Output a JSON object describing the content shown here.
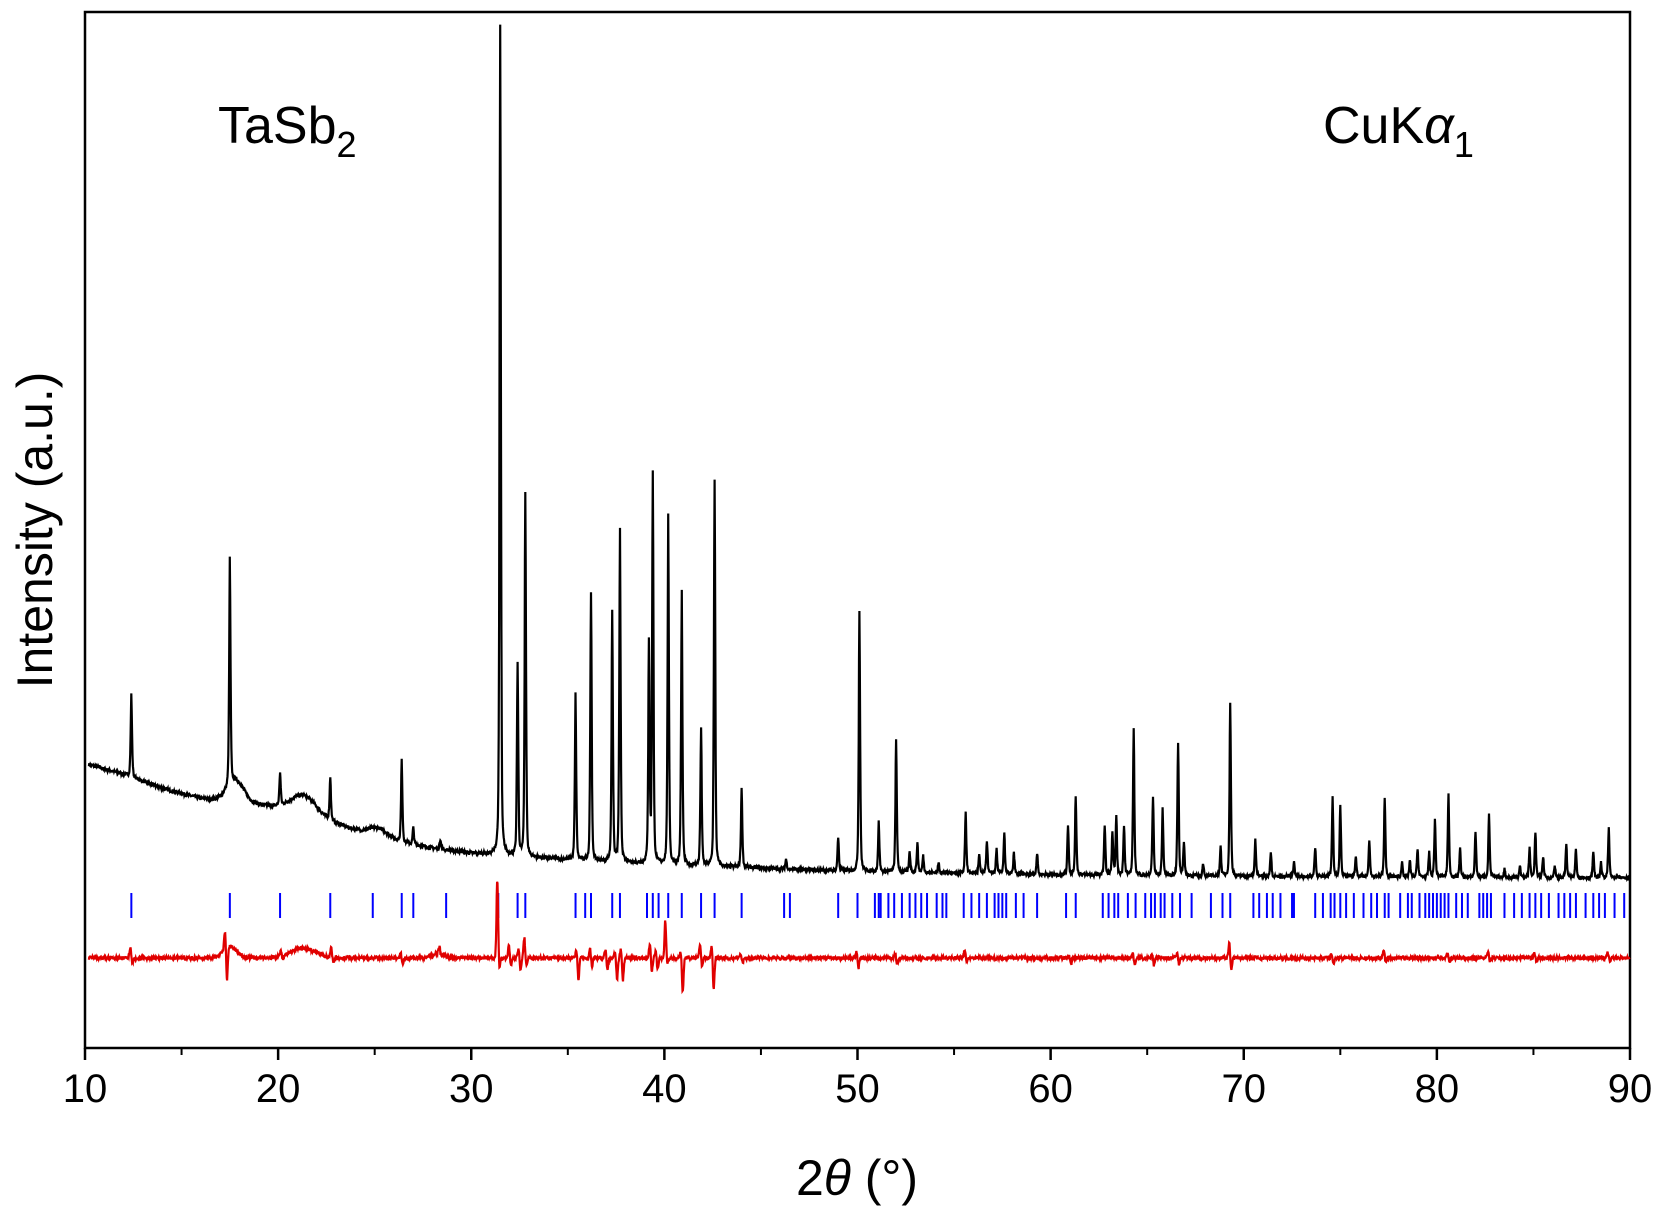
{
  "chart_data": {
    "type": "line",
    "xlabel_prefix": "2",
    "xlabel_symbol": "θ",
    "xlabel_suffix": " (°)",
    "ylabel": "Intensity (a.u.)",
    "xlim": [
      10,
      90
    ],
    "xticks": [
      10,
      20,
      30,
      40,
      50,
      60,
      70,
      80,
      90
    ],
    "y_ticks_labeled": false,
    "grid": false,
    "annotations": {
      "compound_main": "TaSb",
      "compound_sub": "2",
      "radiation_main": "CuK",
      "radiation_greek": "α",
      "radiation_sub": "1"
    },
    "colors": {
      "observed": "#000000",
      "reflections": "#0000ff",
      "difference": "#e00000"
    },
    "observed": {
      "baseline": [
        [
          10,
          0.138
        ],
        [
          12,
          0.125
        ],
        [
          14,
          0.108
        ],
        [
          16,
          0.096
        ],
        [
          18,
          0.092
        ],
        [
          20,
          0.085
        ],
        [
          22,
          0.074
        ],
        [
          24,
          0.058
        ],
        [
          26,
          0.045
        ],
        [
          28,
          0.036
        ],
        [
          30,
          0.03
        ],
        [
          35,
          0.022
        ],
        [
          40,
          0.016
        ],
        [
          45,
          0.012
        ],
        [
          50,
          0.008
        ],
        [
          60,
          0.004
        ],
        [
          70,
          0.002
        ],
        [
          90,
          0.0
        ]
      ],
      "humps": [
        [
          17.8,
          0.025,
          0.6
        ],
        [
          21.3,
          0.022,
          0.9
        ],
        [
          25.2,
          0.01,
          0.7
        ]
      ],
      "peaks": [
        [
          12.4,
          0.1
        ],
        [
          17.5,
          0.275
        ],
        [
          20.1,
          0.04
        ],
        [
          22.7,
          0.052
        ],
        [
          26.4,
          0.098
        ],
        [
          27.0,
          0.02
        ],
        [
          28.4,
          0.012
        ],
        [
          31.5,
          1.0
        ],
        [
          32.4,
          0.23
        ],
        [
          32.8,
          0.44
        ],
        [
          35.4,
          0.2
        ],
        [
          36.2,
          0.325
        ],
        [
          37.3,
          0.3
        ],
        [
          37.7,
          0.4
        ],
        [
          39.2,
          0.265
        ],
        [
          39.4,
          0.47
        ],
        [
          40.2,
          0.42
        ],
        [
          40.9,
          0.33
        ],
        [
          41.9,
          0.164
        ],
        [
          42.6,
          0.465
        ],
        [
          44.0,
          0.095
        ],
        [
          46.3,
          0.012
        ],
        [
          49.0,
          0.04
        ],
        [
          50.1,
          0.315
        ],
        [
          51.1,
          0.06
        ],
        [
          52.0,
          0.16
        ],
        [
          52.7,
          0.025
        ],
        [
          53.1,
          0.035
        ],
        [
          53.4,
          0.02
        ],
        [
          54.2,
          0.012
        ],
        [
          55.6,
          0.075
        ],
        [
          56.3,
          0.022
        ],
        [
          56.7,
          0.04
        ],
        [
          57.2,
          0.03
        ],
        [
          57.6,
          0.05
        ],
        [
          58.1,
          0.025
        ],
        [
          59.3,
          0.025
        ],
        [
          60.9,
          0.06
        ],
        [
          61.3,
          0.095
        ],
        [
          62.8,
          0.06
        ],
        [
          63.2,
          0.05
        ],
        [
          63.4,
          0.07
        ],
        [
          63.8,
          0.06
        ],
        [
          64.3,
          0.175
        ],
        [
          65.3,
          0.095
        ],
        [
          65.8,
          0.08
        ],
        [
          66.6,
          0.16
        ],
        [
          66.9,
          0.04
        ],
        [
          67.9,
          0.015
        ],
        [
          68.8,
          0.035
        ],
        [
          69.3,
          0.21
        ],
        [
          70.6,
          0.045
        ],
        [
          71.4,
          0.03
        ],
        [
          72.6,
          0.018
        ],
        [
          73.7,
          0.035
        ],
        [
          74.6,
          0.095
        ],
        [
          75.0,
          0.085
        ],
        [
          75.8,
          0.025
        ],
        [
          76.5,
          0.045
        ],
        [
          77.3,
          0.095
        ],
        [
          78.2,
          0.018
        ],
        [
          78.6,
          0.02
        ],
        [
          79.0,
          0.035
        ],
        [
          79.6,
          0.03
        ],
        [
          79.9,
          0.07
        ],
        [
          80.6,
          0.1
        ],
        [
          81.2,
          0.035
        ],
        [
          82.0,
          0.055
        ],
        [
          82.7,
          0.075
        ],
        [
          83.5,
          0.01
        ],
        [
          84.3,
          0.015
        ],
        [
          84.8,
          0.035
        ],
        [
          85.1,
          0.055
        ],
        [
          85.5,
          0.025
        ],
        [
          86.1,
          0.015
        ],
        [
          86.7,
          0.04
        ],
        [
          87.2,
          0.035
        ],
        [
          88.1,
          0.03
        ],
        [
          88.5,
          0.018
        ],
        [
          88.9,
          0.06
        ]
      ]
    },
    "reflections": [
      12.4,
      17.5,
      20.1,
      22.7,
      24.9,
      26.4,
      27.0,
      28.7,
      31.4,
      32.4,
      32.8,
      35.4,
      35.9,
      36.2,
      37.3,
      37.7,
      39.1,
      39.4,
      39.7,
      40.2,
      40.9,
      41.9,
      42.6,
      44.0,
      46.2,
      46.5,
      49.0,
      50.0,
      50.9,
      51.1,
      51.2,
      51.6,
      51.9,
      52.3,
      52.7,
      53.0,
      53.3,
      53.6,
      54.1,
      54.4,
      54.6,
      55.5,
      55.9,
      56.3,
      56.7,
      57.1,
      57.3,
      57.5,
      57.7,
      58.2,
      58.6,
      59.3,
      60.8,
      61.3,
      62.7,
      63.0,
      63.3,
      63.5,
      64.0,
      64.4,
      64.9,
      65.2,
      65.4,
      65.7,
      65.9,
      66.3,
      66.7,
      67.3,
      68.3,
      68.9,
      69.3,
      70.5,
      70.8,
      71.2,
      71.5,
      71.9,
      72.5,
      72.6,
      73.7,
      74.1,
      74.5,
      74.7,
      75.0,
      75.3,
      75.7,
      76.2,
      76.6,
      76.9,
      77.3,
      77.5,
      78.1,
      78.5,
      78.7,
      79.1,
      79.4,
      79.6,
      79.8,
      80.0,
      80.2,
      80.4,
      80.6,
      81.0,
      81.3,
      81.6,
      82.2,
      82.4,
      82.6,
      82.8,
      83.5,
      84.0,
      84.4,
      84.8,
      85.1,
      85.4,
      85.8,
      86.3,
      86.6,
      86.9,
      87.2,
      87.7,
      88.1,
      88.4,
      88.7,
      89.2,
      89.7
    ],
    "difference": {
      "humps": [
        [
          17.5,
          0.014,
          0.5
        ],
        [
          21.3,
          0.012,
          0.9
        ],
        [
          28.3,
          0.006,
          0.4
        ]
      ],
      "features": [
        [
          12.4,
          0.012,
          -0.006
        ],
        [
          17.3,
          0.022,
          -0.04
        ],
        [
          20.2,
          0.006,
          -0.004
        ],
        [
          22.8,
          0.012,
          -0.006
        ],
        [
          26.4,
          0.006,
          -0.008
        ],
        [
          28.4,
          0.008,
          -0.004
        ],
        [
          31.4,
          0.095,
          -0.015
        ],
        [
          32.0,
          0.016,
          -0.01
        ],
        [
          32.5,
          0.012,
          -0.014
        ],
        [
          32.8,
          0.025,
          -0.01
        ],
        [
          35.5,
          0.01,
          -0.026
        ],
        [
          36.2,
          0.012,
          -0.01
        ],
        [
          37.0,
          0.01,
          -0.014
        ],
        [
          37.5,
          0.008,
          -0.026
        ],
        [
          37.8,
          0.012,
          -0.028
        ],
        [
          39.3,
          0.018,
          -0.016
        ],
        [
          39.6,
          0.008,
          -0.014
        ],
        [
          40.1,
          0.045,
          -0.008
        ],
        [
          40.9,
          0.008,
          -0.04
        ],
        [
          41.9,
          0.018,
          -0.012
        ],
        [
          42.5,
          0.016,
          -0.038
        ],
        [
          44.0,
          0.004,
          -0.006
        ],
        [
          50.0,
          0.008,
          -0.012
        ],
        [
          52.0,
          0.006,
          -0.008
        ],
        [
          55.6,
          0.01,
          -0.004
        ],
        [
          61.0,
          0.004,
          -0.008
        ],
        [
          64.3,
          0.006,
          -0.008
        ],
        [
          65.3,
          0.005,
          -0.009
        ],
        [
          66.6,
          0.006,
          -0.008
        ],
        [
          69.3,
          0.018,
          -0.014
        ],
        [
          74.6,
          0.005,
          -0.006
        ],
        [
          77.3,
          0.01,
          -0.005
        ],
        [
          80.6,
          0.006,
          -0.005
        ],
        [
          82.7,
          0.008,
          -0.004
        ],
        [
          85.1,
          0.006,
          -0.005
        ],
        [
          88.9,
          0.006,
          -0.004
        ]
      ]
    }
  }
}
